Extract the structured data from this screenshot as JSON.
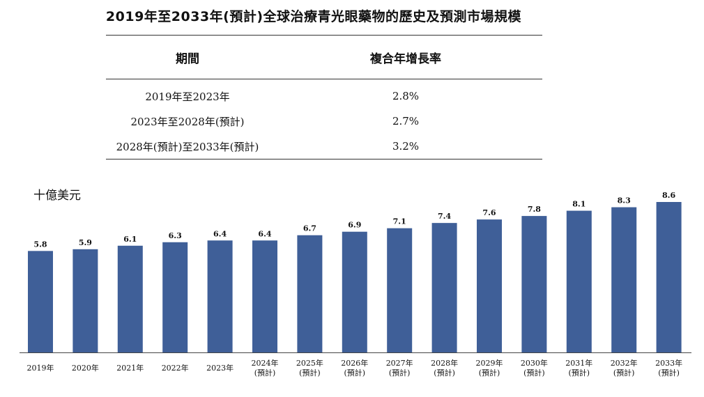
{
  "title": "2019年至2033年(預計)全球治療青光眼藥物的歷史及預測市場規模",
  "cagr_table": {
    "headers": [
      "期間",
      "複合年增長率"
    ],
    "rows": [
      [
        "2019年至2023年",
        "2.8%"
      ],
      [
        "2023年至2028年(預計)",
        "2.7%"
      ],
      [
        "2028年(預計)至2033年(預計)",
        "3.2%"
      ]
    ]
  },
  "chart_data": {
    "type": "bar",
    "ylabel": "十億美元",
    "categories": [
      "2019年",
      "2020年",
      "2021年",
      "2022年",
      "2023年",
      "2024年(預計)",
      "2025年(預計)",
      "2026年(預計)",
      "2027年(預計)",
      "2028年(預計)",
      "2029年(預計)",
      "2030年(預計)",
      "2031年(預計)",
      "2032年(預計)",
      "2033年(預計)"
    ],
    "values": [
      5.8,
      5.9,
      6.1,
      6.3,
      6.4,
      6.4,
      6.7,
      6.9,
      7.1,
      7.4,
      7.6,
      7.8,
      8.1,
      8.3,
      8.6
    ],
    "value_labels": [
      "5.8",
      "5.9",
      "6.1",
      "6.3",
      "6.4",
      "6.4",
      "6.7",
      "6.9",
      "7.1",
      "7.4",
      "7.6",
      "7.8",
      "8.1",
      "8.3",
      "8.6"
    ],
    "ylim": [
      0,
      8.6
    ],
    "bar_color": "#3f5f98",
    "grid": false,
    "legend": "none"
  }
}
